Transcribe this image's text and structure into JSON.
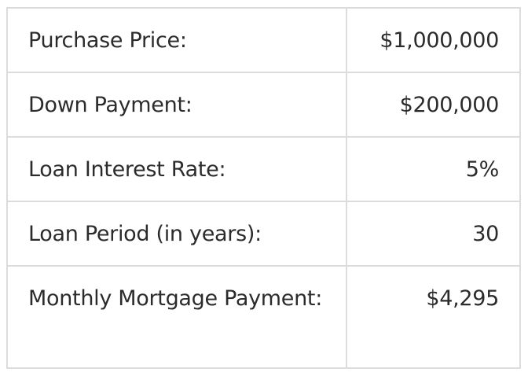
{
  "table": {
    "rows": [
      {
        "label": "Purchase Price:",
        "value": "$1,000,000"
      },
      {
        "label": "Down Payment:",
        "value": "$200,000"
      },
      {
        "label": "Loan Interest Rate:",
        "value": "5%"
      },
      {
        "label": "Loan Period (in years):",
        "value": "30"
      },
      {
        "label": "Monthly Mortgage Payment:",
        "value": "$4,295"
      }
    ]
  }
}
